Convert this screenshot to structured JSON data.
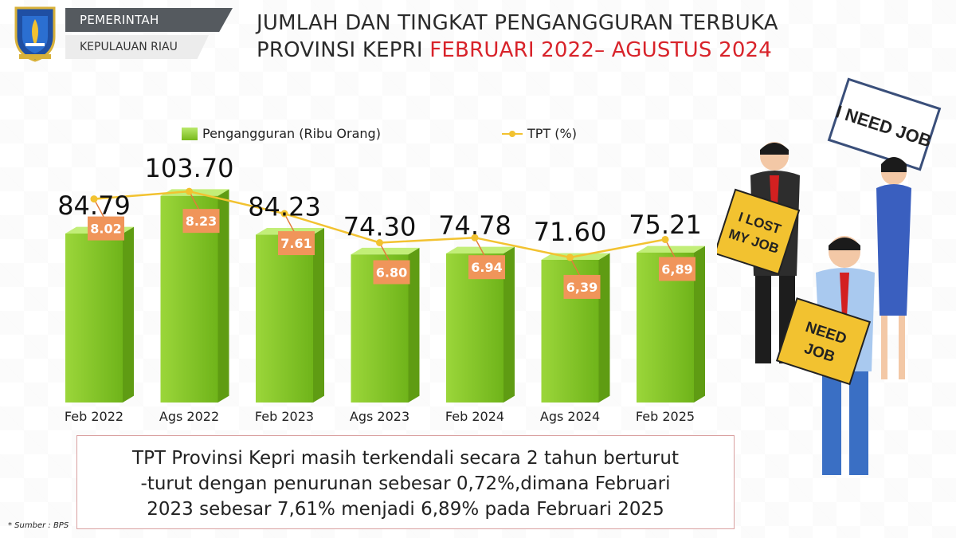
{
  "header": {
    "gov_line1": "PEMERINTAH",
    "gov_line2": "KEPULAUAN RIAU",
    "title_line1": "JUMLAH DAN TINGKAT PENGANGGURAN TERBUKA",
    "title_line2_prefix": "PROVINSI KEPRI ",
    "title_line2_highlight": "FEBRUARI 2022– AGUSTUS 2024"
  },
  "legend": {
    "bar_label": "Pengangguran (Ribu Orang)",
    "line_label": "TPT (%)"
  },
  "chart_data": {
    "type": "bar",
    "categories": [
      "Feb 2022",
      "Ags 2022",
      "Feb 2023",
      "Ags 2023",
      "Feb 2024",
      "Ags 2024",
      "Feb 2025"
    ],
    "series": [
      {
        "name": "Pengangguran (Ribu Orang)",
        "type": "bar",
        "values": [
          84.79,
          103.7,
          84.23,
          74.3,
          74.78,
          71.6,
          75.21
        ],
        "labels": [
          "84.79",
          "103.70",
          "84.23",
          "74.30",
          "74.78",
          "71.60",
          "75.21"
        ],
        "color": "#8fcd2e"
      },
      {
        "name": "TPT (%)",
        "type": "line",
        "values": [
          8.02,
          8.23,
          7.61,
          6.8,
          6.94,
          6.39,
          6.89
        ],
        "labels": [
          "8.02",
          "8.23",
          "7.61",
          "6.80",
          "6.94",
          "6,39",
          "6,89"
        ],
        "color": "#f2c230",
        "label_bg": "#f0955a"
      }
    ]
  },
  "note": {
    "line1": "TPT Provinsi Kepri masih terkendali secara 2 tahun berturut",
    "line2": "-turut dengan penurunan sebesar 0,72%,dimana Februari",
    "line3": "2023 sebesar 7,61% menjadi  6,89% pada Februari 2025"
  },
  "source": "* Sumber : BPS",
  "illustration": {
    "sign1": [
      "I NEED JOB"
    ],
    "sign2": [
      "I LOST",
      "MY JOB"
    ],
    "sign3": [
      "NEED",
      "JOB"
    ]
  }
}
